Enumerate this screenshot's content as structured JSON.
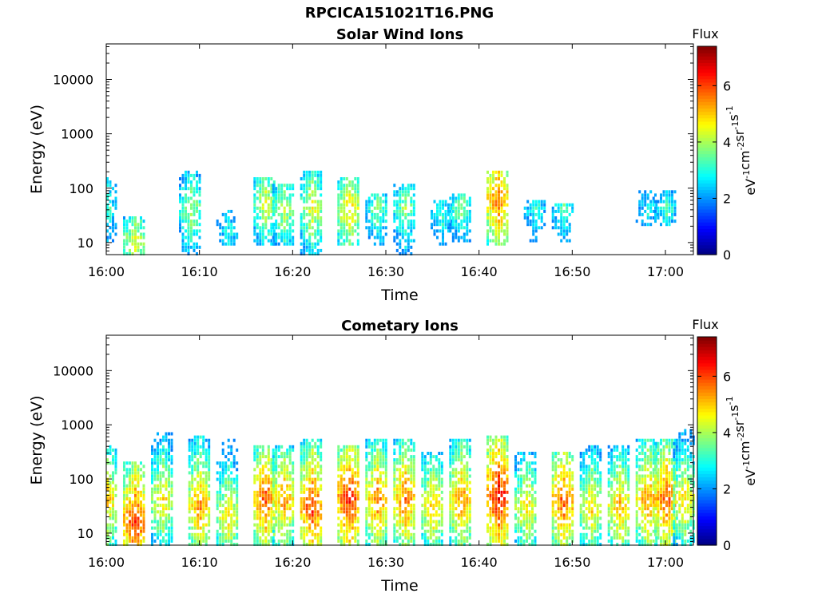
{
  "page_title": "RPCICA151021T16.PNG",
  "chart_data": [
    {
      "type": "heatmap",
      "title": "Solar Wind Ions",
      "xlabel": "Time",
      "ylabel": "Energy (eV)",
      "x_ticks": [
        "16:00",
        "16:10",
        "16:20",
        "16:30",
        "16:40",
        "16:50",
        "17:00"
      ],
      "x_range": [
        "16:00",
        "17:03"
      ],
      "y_scale": "log",
      "y_ticks": [
        10,
        100,
        1000,
        10000
      ],
      "y_ticklabels": [
        "10",
        "100",
        "1000",
        "10000"
      ],
      "y_range": [
        6,
        45000
      ],
      "colorbar": {
        "title": "Flux",
        "unit": "eV-1 cm-2 sr-1 s-1",
        "range": [
          0,
          7.4
        ],
        "ticks": [
          0,
          2,
          4,
          6
        ],
        "colormap": "jet"
      },
      "bursts": [
        {
          "t": "16:00",
          "e_min": 10,
          "e_max": 150,
          "peak": 3.4,
          "peak_e": 40
        },
        {
          "t": "16:03",
          "e_min": 6,
          "e_max": 30,
          "peak": 4.5,
          "peak_e": 10
        },
        {
          "t": "16:09",
          "e_min": 6,
          "e_max": 200,
          "peak": 4.2,
          "peak_e": 40
        },
        {
          "t": "16:13",
          "e_min": 8,
          "e_max": 40,
          "peak": 3.0,
          "peak_e": 15
        },
        {
          "t": "16:17",
          "e_min": 8,
          "e_max": 150,
          "peak": 4.5,
          "peak_e": 50
        },
        {
          "t": "16:19",
          "e_min": 8,
          "e_max": 120,
          "peak": 4.3,
          "peak_e": 40
        },
        {
          "t": "16:22",
          "e_min": 6,
          "e_max": 200,
          "peak": 4.6,
          "peak_e": 40
        },
        {
          "t": "16:26",
          "e_min": 8,
          "e_max": 150,
          "peak": 5.0,
          "peak_e": 40
        },
        {
          "t": "16:29",
          "e_min": 8,
          "e_max": 80,
          "peak": 3.8,
          "peak_e": 40
        },
        {
          "t": "16:32",
          "e_min": 6,
          "e_max": 120,
          "peak": 4.0,
          "peak_e": 40
        },
        {
          "t": "16:36",
          "e_min": 8,
          "e_max": 60,
          "peak": 3.3,
          "peak_e": 30
        },
        {
          "t": "16:38",
          "e_min": 10,
          "e_max": 80,
          "peak": 3.8,
          "peak_e": 40
        },
        {
          "t": "16:42",
          "e_min": 8,
          "e_max": 200,
          "peak": 5.8,
          "peak_e": 60
        },
        {
          "t": "16:46",
          "e_min": 10,
          "e_max": 60,
          "peak": 3.2,
          "peak_e": 40
        },
        {
          "t": "16:49",
          "e_min": 10,
          "e_max": 50,
          "peak": 3.5,
          "peak_e": 40
        },
        {
          "t": "16:58",
          "e_min": 20,
          "e_max": 90,
          "peak": 3.0,
          "peak_e": 40
        },
        {
          "t": "17:00",
          "e_min": 20,
          "e_max": 90,
          "peak": 3.4,
          "peak_e": 40
        }
      ]
    },
    {
      "type": "heatmap",
      "title": "Cometary Ions",
      "xlabel": "Time",
      "ylabel": "Energy (eV)",
      "x_ticks": [
        "16:00",
        "16:10",
        "16:20",
        "16:30",
        "16:40",
        "16:50",
        "17:00"
      ],
      "x_range": [
        "16:00",
        "17:03"
      ],
      "y_scale": "log",
      "y_ticks": [
        10,
        100,
        1000,
        10000
      ],
      "y_ticklabels": [
        "10",
        "100",
        "1000",
        "10000"
      ],
      "y_range": [
        6,
        45000
      ],
      "colorbar": {
        "title": "Flux",
        "unit": "eV-1 cm-2 sr-1 s-1",
        "range": [
          0,
          7.4
        ],
        "ticks": [
          0,
          2,
          4,
          6
        ],
        "colormap": "jet"
      },
      "bursts": [
        {
          "t": "16:00",
          "e_min": 6,
          "e_max": 400,
          "peak": 5.2,
          "peak_e": 40
        },
        {
          "t": "16:03",
          "e_min": 6,
          "e_max": 200,
          "peak": 6.3,
          "peak_e": 15
        },
        {
          "t": "16:06",
          "e_min": 6,
          "e_max": 700,
          "peak": 5.0,
          "peak_e": 40
        },
        {
          "t": "16:10",
          "e_min": 6,
          "e_max": 600,
          "peak": 5.6,
          "peak_e": 30
        },
        {
          "t": "16:13",
          "e_min": 6,
          "e_max": 500,
          "peak": 5.0,
          "peak_e": 20
        },
        {
          "t": "16:17",
          "e_min": 6,
          "e_max": 400,
          "peak": 6.0,
          "peak_e": 40
        },
        {
          "t": "16:19",
          "e_min": 6,
          "e_max": 400,
          "peak": 5.5,
          "peak_e": 40
        },
        {
          "t": "16:22",
          "e_min": 6,
          "e_max": 500,
          "peak": 6.2,
          "peak_e": 30
        },
        {
          "t": "16:26",
          "e_min": 6,
          "e_max": 400,
          "peak": 6.4,
          "peak_e": 40
        },
        {
          "t": "16:29",
          "e_min": 6,
          "e_max": 500,
          "peak": 5.7,
          "peak_e": 40
        },
        {
          "t": "16:32",
          "e_min": 6,
          "e_max": 500,
          "peak": 5.8,
          "peak_e": 40
        },
        {
          "t": "16:35",
          "e_min": 6,
          "e_max": 300,
          "peak": 5.2,
          "peak_e": 30
        },
        {
          "t": "16:38",
          "e_min": 6,
          "e_max": 500,
          "peak": 5.6,
          "peak_e": 40
        },
        {
          "t": "16:42",
          "e_min": 6,
          "e_max": 600,
          "peak": 6.6,
          "peak_e": 50
        },
        {
          "t": "16:45",
          "e_min": 6,
          "e_max": 300,
          "peak": 5.0,
          "peak_e": 30
        },
        {
          "t": "16:49",
          "e_min": 6,
          "e_max": 300,
          "peak": 6.0,
          "peak_e": 40
        },
        {
          "t": "16:52",
          "e_min": 6,
          "e_max": 400,
          "peak": 5.0,
          "peak_e": 30
        },
        {
          "t": "16:55",
          "e_min": 6,
          "e_max": 400,
          "peak": 5.3,
          "peak_e": 30
        },
        {
          "t": "16:58",
          "e_min": 6,
          "e_max": 500,
          "peak": 5.6,
          "peak_e": 40
        },
        {
          "t": "17:00",
          "e_min": 6,
          "e_max": 500,
          "peak": 6.0,
          "peak_e": 40
        },
        {
          "t": "17:02",
          "e_min": 6,
          "e_max": 800,
          "peak": 5.0,
          "peak_e": 40
        }
      ]
    }
  ]
}
